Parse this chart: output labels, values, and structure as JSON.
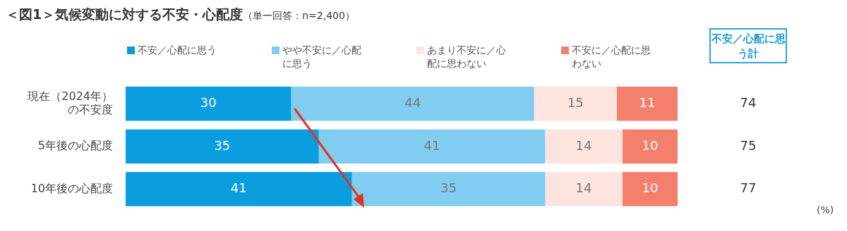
{
  "chart_data": {
    "type": "bar",
    "orientation": "horizontal",
    "stacked": true,
    "title": "＜図1＞気候変動に対する不安・心配度",
    "subtitle": "（単一回答：n=2,400）",
    "categories": [
      "現在（2024年）の不安度",
      "5年後の心配度",
      "10年後の心配度"
    ],
    "series": [
      {
        "name": "不安／心配に思う",
        "color": "#0a9ee0",
        "values": [
          30,
          35,
          41
        ]
      },
      {
        "name": "やや不安に／心配に思う",
        "color": "#80cdf1",
        "values": [
          44,
          41,
          35
        ]
      },
      {
        "name": "あまり不安に／心配に思わない",
        "color": "#fde4df",
        "values": [
          15,
          14,
          14
        ]
      },
      {
        "name": "不安に／心配に思わない",
        "color": "#f47f6c",
        "values": [
          11,
          10,
          10
        ]
      }
    ],
    "xlim": [
      0,
      100
    ],
    "tick_labels": "y",
    "data_labels": true,
    "legend": "top",
    "annotations": [
      "不安／心配に思う計",
      "74",
      "75",
      "77",
      "(%)"
    ]
  }
}
